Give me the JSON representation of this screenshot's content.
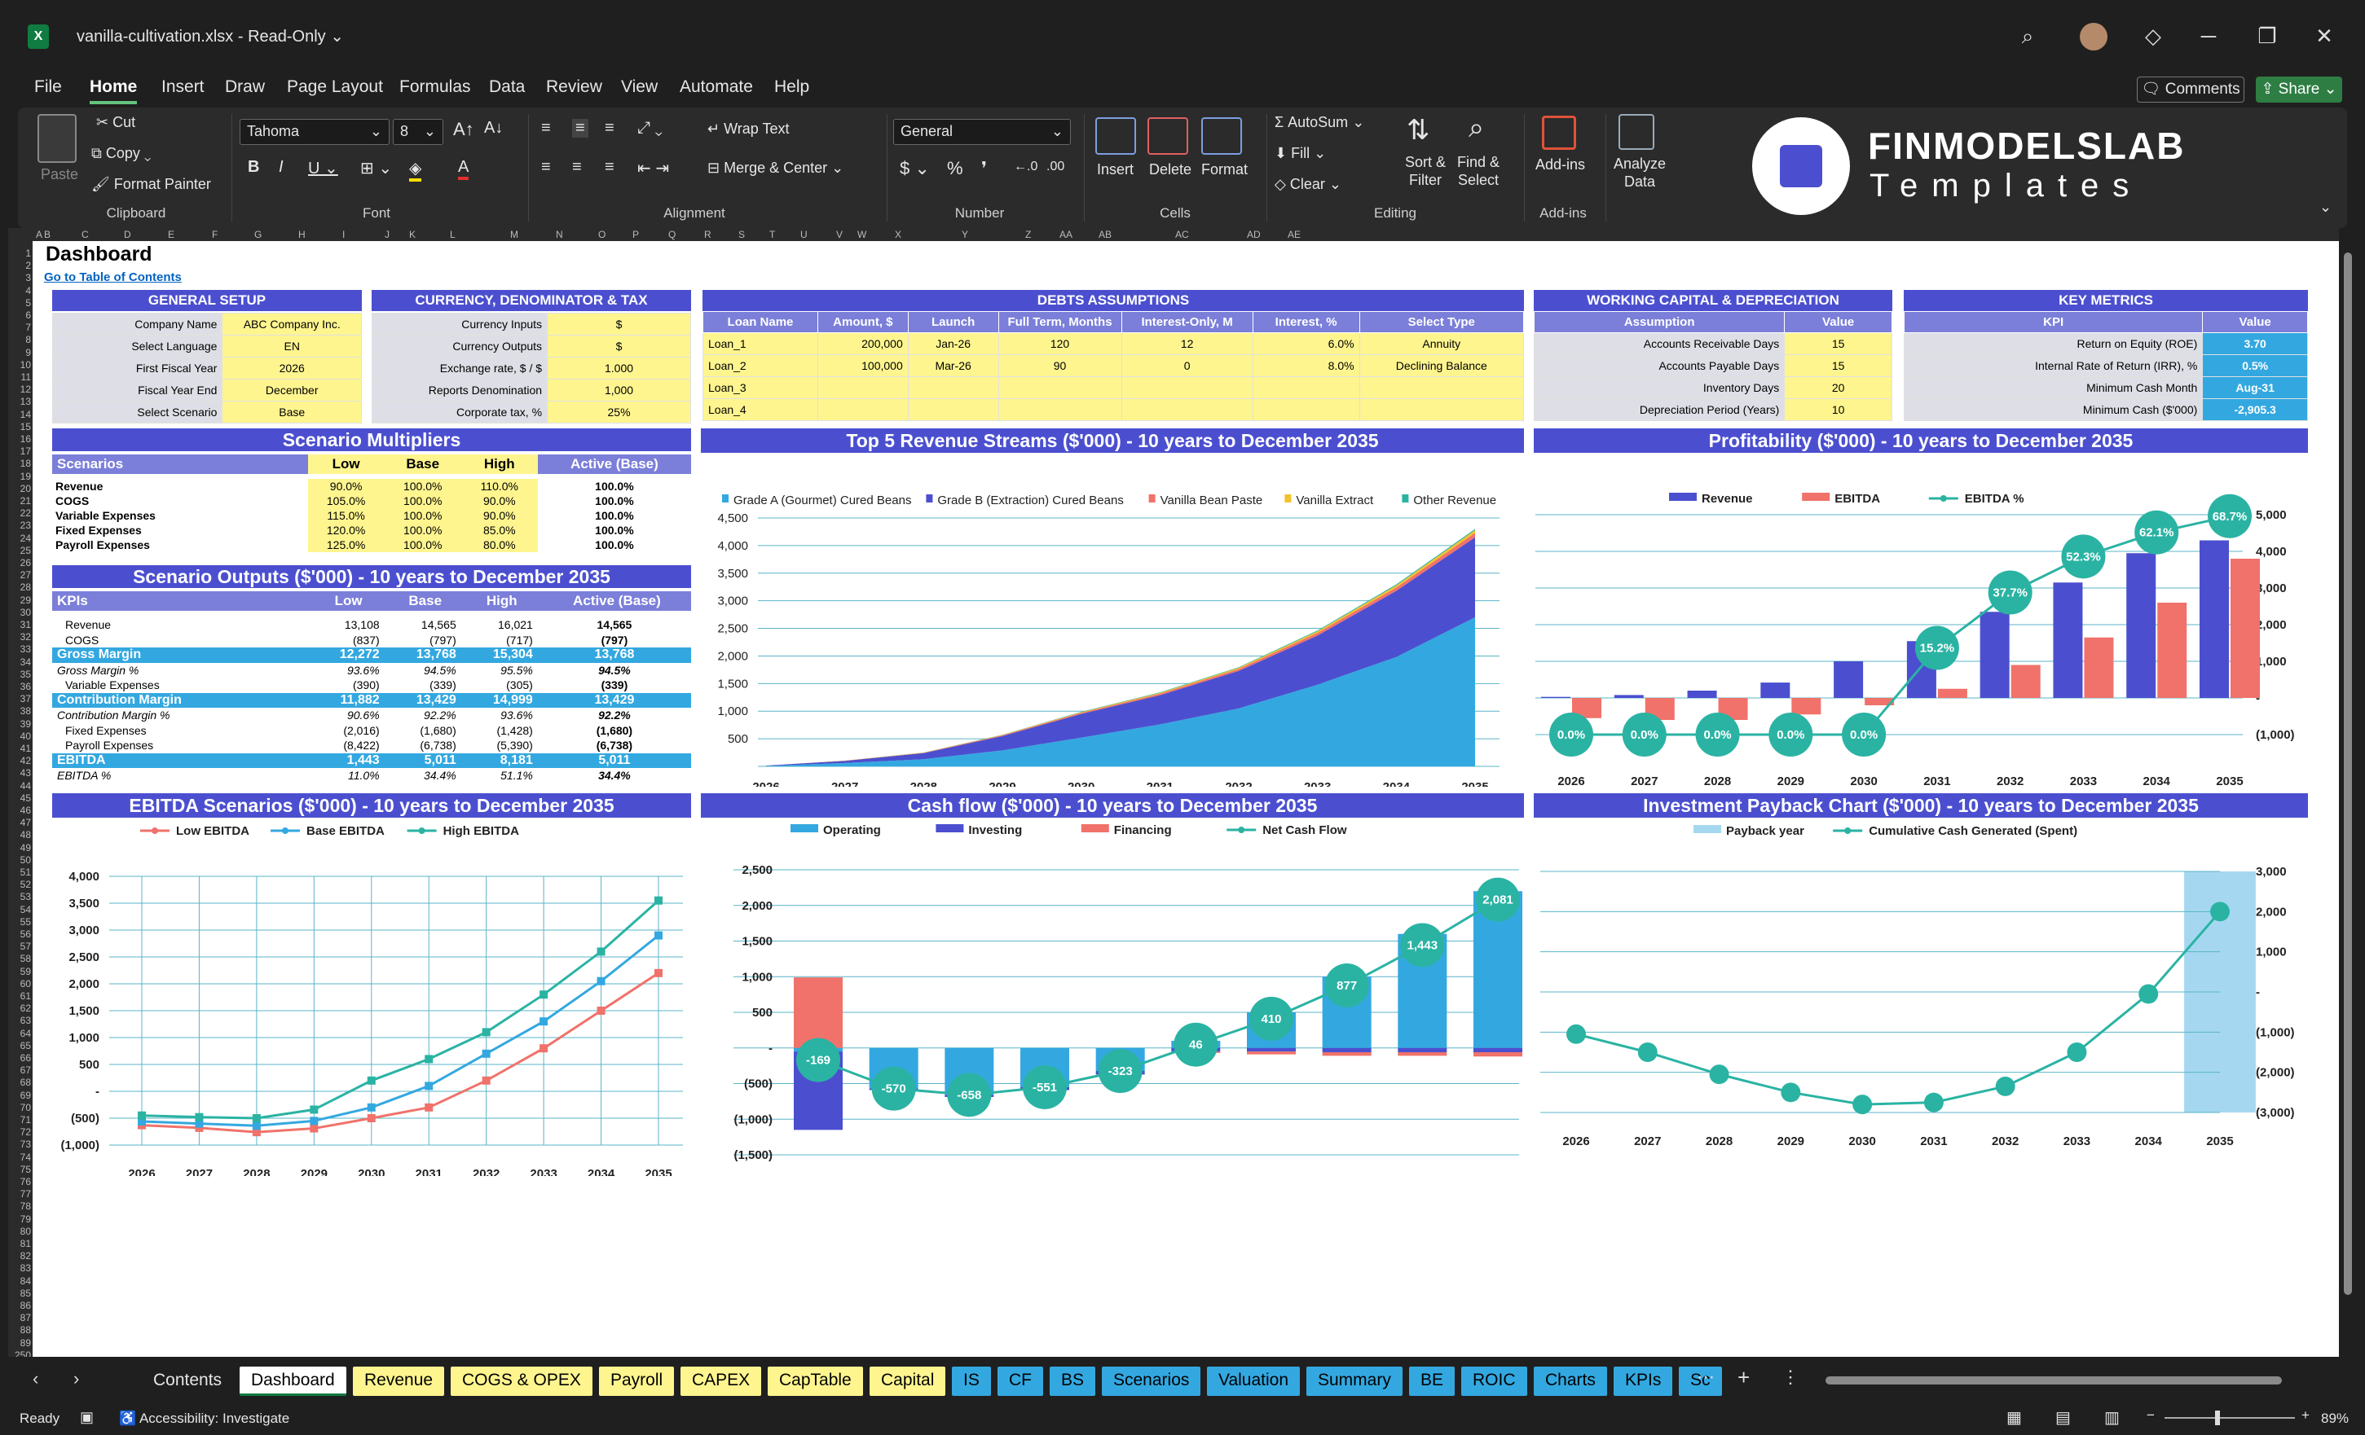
{
  "window": {
    "file_name": "vanilla-cultivation.xlsx",
    "mode": "Read-Only",
    "window_buttons": [
      "─",
      "❐",
      "✕"
    ]
  },
  "menu": [
    "File",
    "Home",
    "Insert",
    "Draw",
    "Page Layout",
    "Formulas",
    "Data",
    "Review",
    "View",
    "Automate",
    "Help"
  ],
  "menu_active": "Home",
  "comments_label": "Comments",
  "share_label": "Share",
  "ribbon": {
    "paste": "Paste",
    "cut": "Cut",
    "copy": "Copy",
    "format_painter": "Format Painter",
    "clipboard": "Clipboard",
    "font_name": "Tahoma",
    "font_size": "8",
    "font": "Font",
    "wrap_text": "Wrap Text",
    "merge_center": "Merge & Center",
    "alignment": "Alignment",
    "number_format": "General",
    "number": "Number",
    "insert": "Insert",
    "delete": "Delete",
    "format": "Format",
    "cells": "Cells",
    "autosum": "AutoSum",
    "fill": "Fill",
    "clear": "Clear",
    "sort_filter": "Sort &\nFilter",
    "find_select": "Find &\nSelect",
    "editing": "Editing",
    "addins": "Add-ins",
    "addins_group": "Add-ins",
    "analyze": "Analyze\nData"
  },
  "brand": {
    "name": "FINMODELSLAB",
    "tagline": "Templates"
  },
  "columns": [
    "A",
    "B",
    "C",
    "D",
    "E",
    "F",
    "G",
    "H",
    "I",
    "J",
    "K",
    "L",
    "M",
    "N",
    "O",
    "P",
    "Q",
    "R",
    "S",
    "T",
    "U",
    "V",
    "W",
    "X",
    "Y",
    "Z",
    "AA",
    "AB",
    "AC",
    "AD",
    "AE"
  ],
  "sheet": {
    "title": "Dashboard",
    "link": "Go to Table of Contents",
    "general_setup": {
      "header": "GENERAL SETUP",
      "rows": [
        [
          "Company Name",
          "ABC Company Inc."
        ],
        [
          "Select Language",
          "EN"
        ],
        [
          "First Fiscal Year",
          "2026"
        ],
        [
          "Fiscal Year End",
          "December"
        ],
        [
          "Select Scenario",
          "Base"
        ]
      ]
    },
    "currency": {
      "header": "CURRENCY, DENOMINATOR & TAX",
      "rows": [
        [
          "Currency Inputs",
          "$"
        ],
        [
          "Currency Outputs",
          "$"
        ],
        [
          "Exchange rate, $ / $",
          "1.000"
        ],
        [
          "Reports Denomination",
          "1,000"
        ],
        [
          "Corporate tax, %",
          "25%"
        ]
      ]
    },
    "debts": {
      "header": "DEBTS ASSUMPTIONS",
      "cols": [
        "Loan Name",
        "Amount, $",
        "Launch",
        "Full Term, Months",
        "Interest-Only, M",
        "Interest, %",
        "Select Type"
      ],
      "rows": [
        [
          "Loan_1",
          "200,000",
          "Jan-26",
          "120",
          "12",
          "6.0%",
          "Annuity"
        ],
        [
          "Loan_2",
          "100,000",
          "Mar-26",
          "90",
          "0",
          "8.0%",
          "Declining Balance"
        ],
        [
          "Loan_3",
          "",
          "",
          "",
          "",
          "",
          ""
        ],
        [
          "Loan_4",
          "",
          "",
          "",
          "",
          "",
          ""
        ]
      ]
    },
    "wc": {
      "header": "WORKING CAPITAL & DEPRECIATION",
      "cols": [
        "Assumption",
        "Value"
      ],
      "rows": [
        [
          "Accounts Receivable Days",
          "15"
        ],
        [
          "Accounts Payable Days",
          "15"
        ],
        [
          "Inventory Days",
          "20"
        ],
        [
          "Depreciation Period (Years)",
          "10"
        ]
      ]
    },
    "metrics": {
      "header": "KEY METRICS",
      "cols": [
        "KPI",
        "Value"
      ],
      "rows": [
        [
          "Return on Equity (ROE)",
          "3.70"
        ],
        [
          "Internal Rate of Return (IRR), %",
          "0.5%"
        ],
        [
          "Minimum Cash Month",
          "Aug-31"
        ],
        [
          "Minimum Cash ($'000)",
          "-2,905.3"
        ]
      ]
    },
    "multipliers": {
      "header": "Scenario Multipliers",
      "cols": [
        "Scenarios",
        "Low",
        "Base",
        "High",
        "Active (Base)"
      ],
      "rows": [
        [
          "Revenue",
          "90.0%",
          "100.0%",
          "110.0%",
          "100.0%"
        ],
        [
          "COGS",
          "105.0%",
          "100.0%",
          "90.0%",
          "100.0%"
        ],
        [
          "Variable Expenses",
          "115.0%",
          "100.0%",
          "90.0%",
          "100.0%"
        ],
        [
          "Fixed Expenses",
          "120.0%",
          "100.0%",
          "85.0%",
          "100.0%"
        ],
        [
          "Payroll Expenses",
          "125.0%",
          "100.0%",
          "80.0%",
          "100.0%"
        ]
      ]
    },
    "outputs": {
      "header": "Scenario Outputs ($'000) - 10 years to December 2035",
      "cols": [
        "KPIs",
        "Low",
        "Base",
        "High",
        "Active (Base)"
      ],
      "rows": [
        [
          "Revenue",
          "13,108",
          "14,565",
          "16,021",
          "14,565",
          "n"
        ],
        [
          "COGS",
          "(837)",
          "(797)",
          "(717)",
          "(797)",
          "n"
        ],
        [
          "Gross Margin",
          "12,272",
          "13,768",
          "15,304",
          "13,768",
          "h"
        ],
        [
          "Gross Margin %",
          "93.6%",
          "94.5%",
          "95.5%",
          "94.5%",
          "i"
        ],
        [
          "Variable Expenses",
          "(390)",
          "(339)",
          "(305)",
          "(339)",
          "n"
        ],
        [
          "Contribution Margin",
          "11,882",
          "13,429",
          "14,999",
          "13,429",
          "h"
        ],
        [
          "Contribution Margin %",
          "90.6%",
          "92.2%",
          "93.6%",
          "92.2%",
          "i"
        ],
        [
          "Fixed Expenses",
          "(2,016)",
          "(1,680)",
          "(1,428)",
          "(1,680)",
          "n"
        ],
        [
          "Payroll Expenses",
          "(8,422)",
          "(6,738)",
          "(5,390)",
          "(6,738)",
          "n"
        ],
        [
          "EBITDA",
          "1,443",
          "5,011",
          "8,181",
          "5,011",
          "h"
        ],
        [
          "EBITDA %",
          "11.0%",
          "34.4%",
          "51.1%",
          "34.4%",
          "i"
        ]
      ]
    }
  },
  "chart_data": [
    {
      "type": "area",
      "title": "Top 5 Revenue Streams ($'000) - 10 years to December 2035",
      "categories": [
        "2026",
        "2027",
        "2028",
        "2029",
        "2030",
        "2031",
        "2032",
        "2033",
        "2034",
        "2035"
      ],
      "ylim": [
        0,
        4500
      ],
      "yticks": [
        "500",
        "1,000",
        "1,500",
        "2,000",
        "2,500",
        "3,000",
        "3,500",
        "4,000",
        "4,500"
      ],
      "series": [
        {
          "name": "Grade A (Gourmet) Cured Beans",
          "color": "#33a8e0",
          "values": [
            10,
            60,
            130,
            290,
            520,
            760,
            1050,
            1480,
            1980,
            2700
          ]
        },
        {
          "name": "Grade B (Extraction) Cured Beans",
          "color": "#4b4fcf",
          "values": [
            5,
            40,
            110,
            260,
            430,
            530,
            680,
            890,
            1200,
            1450
          ]
        },
        {
          "name": "Vanilla Bean Paste",
          "color": "#f0726a",
          "values": [
            0,
            3,
            6,
            12,
            20,
            26,
            35,
            48,
            60,
            80
          ]
        },
        {
          "name": "Vanilla Extract",
          "color": "#f2c12e",
          "values": [
            0,
            2,
            4,
            8,
            12,
            16,
            22,
            30,
            40,
            50
          ]
        },
        {
          "name": "Other Revenue",
          "color": "#2ab3a3",
          "values": [
            0,
            1,
            2,
            4,
            6,
            8,
            10,
            14,
            18,
            20
          ]
        }
      ]
    },
    {
      "type": "bar",
      "title": "Profitability ($'000) - 10 years to December 2035",
      "categories": [
        "2026",
        "2027",
        "2028",
        "2029",
        "2030",
        "2031",
        "2032",
        "2033",
        "2034",
        "2035"
      ],
      "ylim": [
        -1000,
        5000
      ],
      "yticks": [
        "(1,000)",
        "-",
        "1,000",
        "2,000",
        "3,000",
        "4,000",
        "5,000"
      ],
      "series": [
        {
          "name": "Revenue",
          "color": "#4b4fcf",
          "values": [
            30,
            80,
            200,
            420,
            1000,
            1550,
            2350,
            3150,
            3950,
            4300
          ]
        },
        {
          "name": "EBITDA",
          "color": "#f0726a",
          "values": [
            -550,
            -600,
            -600,
            -450,
            -200,
            250,
            900,
            1650,
            2600,
            3800
          ]
        },
        {
          "name": "EBITDA %",
          "color": "#2ab3a3",
          "values": [
            0,
            0,
            0,
            0,
            0,
            15.2,
            37.7,
            52.3,
            62.1,
            68.7
          ],
          "labels": [
            "0.0%",
            "0.0%",
            "0.0%",
            "0.0%",
            "0.0%",
            "15.2%",
            "37.7%",
            "52.3%",
            "62.1%",
            "68.7%"
          ]
        }
      ]
    },
    {
      "type": "line",
      "title": "EBITDA Scenarios ($'000) - 10 years to December 2035",
      "categories": [
        "2026",
        "2027",
        "2028",
        "2029",
        "2030",
        "2031",
        "2032",
        "2033",
        "2034",
        "2035"
      ],
      "ylim": [
        -1000,
        4000
      ],
      "yticks": [
        "(1,000)",
        "(500)",
        "-",
        "500",
        "1,000",
        "1,500",
        "2,000",
        "2,500",
        "3,000",
        "3,500",
        "4,000"
      ],
      "series": [
        {
          "name": "Low EBITDA",
          "color": "#f0726a",
          "values": [
            -630,
            -680,
            -760,
            -690,
            -500,
            -300,
            200,
            800,
            1500,
            2200
          ]
        },
        {
          "name": "Base EBITDA",
          "color": "#33a8e0",
          "values": [
            -560,
            -600,
            -640,
            -550,
            -300,
            100,
            700,
            1300,
            2050,
            2900
          ]
        },
        {
          "name": "High EBITDA",
          "color": "#2ab3a3",
          "values": [
            -450,
            -480,
            -500,
            -340,
            200,
            600,
            1100,
            1800,
            2600,
            3550
          ]
        }
      ]
    },
    {
      "type": "bar",
      "title": "Cash flow ($'000) - 10 years to December 2035",
      "categories": [
        "2026",
        "2027",
        "2028",
        "2029",
        "2030",
        "2031",
        "2032",
        "2033",
        "2034",
        "2035"
      ],
      "ylim": [
        -1500,
        2500
      ],
      "yticks": [
        "(1,500)",
        "(1,000)",
        "(500)",
        "-",
        "500",
        "1,000",
        "1,500",
        "2,000",
        "2,500"
      ],
      "series": [
        {
          "name": "Operating",
          "color": "#33a8e0",
          "values": [
            -50,
            -570,
            -658,
            -551,
            -323,
            100,
            500,
            1000,
            1600,
            2200
          ]
        },
        {
          "name": "Investing",
          "color": "#4b4fcf",
          "values": [
            -1100,
            -20,
            -30,
            -40,
            -50,
            -50,
            -50,
            -60,
            -60,
            -60
          ]
        },
        {
          "name": "Financing",
          "color": "#f0726a",
          "values": [
            990,
            0,
            0,
            0,
            0,
            -20,
            -40,
            -50,
            -50,
            -60
          ]
        },
        {
          "name": "Net Cash Flow",
          "color": "#2ab3a3",
          "values": [
            -169,
            -570,
            -658,
            -551,
            -323,
            46,
            410,
            877,
            1443,
            2081
          ],
          "labels": [
            "-169",
            "-570",
            "-658",
            "-551",
            "-323",
            "46",
            "410",
            "877",
            "1,443",
            "2,081"
          ]
        }
      ]
    },
    {
      "type": "line",
      "title": "Investment Payback Chart ($'000) - 10 years to December 2035",
      "categories": [
        "2026",
        "2027",
        "2028",
        "2029",
        "2030",
        "2031",
        "2032",
        "2033",
        "2034",
        "2035"
      ],
      "ylim": [
        -3000,
        3000
      ],
      "yticks": [
        "(3,000)",
        "(2,000)",
        "(1,000)",
        "-",
        "1,000",
        "2,000",
        "3,000"
      ],
      "series": [
        {
          "name": "Payback year",
          "color": "#a5d8f0",
          "values": [
            0,
            0,
            0,
            0,
            0,
            0,
            0,
            0,
            0,
            1
          ]
        },
        {
          "name": "Cumulative Cash Generated (Spent)",
          "color": "#2ab3a3",
          "values": [
            -1050,
            -1500,
            -2050,
            -2500,
            -2800,
            -2750,
            -2350,
            -1500,
            -50,
            2000
          ]
        }
      ]
    }
  ],
  "row_numbers": [
    "1",
    "2",
    "3",
    "4",
    "5",
    "6",
    "7",
    "8",
    "9",
    "10",
    "11",
    "12",
    "13",
    "14",
    "15",
    "16",
    "17",
    "18",
    "19",
    "20",
    "21",
    "22",
    "23",
    "24",
    "25",
    "26",
    "27",
    "28",
    "29",
    "30",
    "31",
    "32",
    "33",
    "34",
    "35",
    "36",
    "37",
    "38",
    "39",
    "40",
    "41",
    "42",
    "43",
    "44",
    "45",
    "46",
    "47",
    "48",
    "49",
    "50",
    "51",
    "52",
    "53",
    "54",
    "55",
    "56",
    "57",
    "58",
    "59",
    "60",
    "61",
    "62",
    "63",
    "64",
    "65",
    "66",
    "67",
    "68",
    "69",
    "70",
    "71",
    "72",
    "73",
    "74",
    "75",
    "76",
    "77",
    "78",
    "79",
    "80",
    "81",
    "82",
    "83",
    "84",
    "85",
    "86",
    "87",
    "88",
    "89",
    "250"
  ],
  "tabs": [
    {
      "label": "Contents",
      "c": "w"
    },
    {
      "label": "Dashboard",
      "c": "act"
    },
    {
      "label": "Revenue",
      "c": "y"
    },
    {
      "label": "COGS & OPEX",
      "c": "y"
    },
    {
      "label": "Payroll",
      "c": "y"
    },
    {
      "label": "CAPEX",
      "c": "y"
    },
    {
      "label": "CapTable",
      "c": "y"
    },
    {
      "label": "Capital",
      "c": "y"
    },
    {
      "label": "IS",
      "c": "b"
    },
    {
      "label": "CF",
      "c": "b"
    },
    {
      "label": "BS",
      "c": "b"
    },
    {
      "label": "Scenarios",
      "c": "b"
    },
    {
      "label": "Valuation",
      "c": "b"
    },
    {
      "label": "Summary",
      "c": "b"
    },
    {
      "label": "BE",
      "c": "b"
    },
    {
      "label": "ROIC",
      "c": "b"
    },
    {
      "label": "Charts",
      "c": "b"
    },
    {
      "label": "KPIs",
      "c": "b"
    },
    {
      "label": "Sc",
      "c": "b"
    }
  ],
  "status": {
    "ready": "Ready",
    "accessibility": "Accessibility: Investigate",
    "zoom": "89%"
  }
}
